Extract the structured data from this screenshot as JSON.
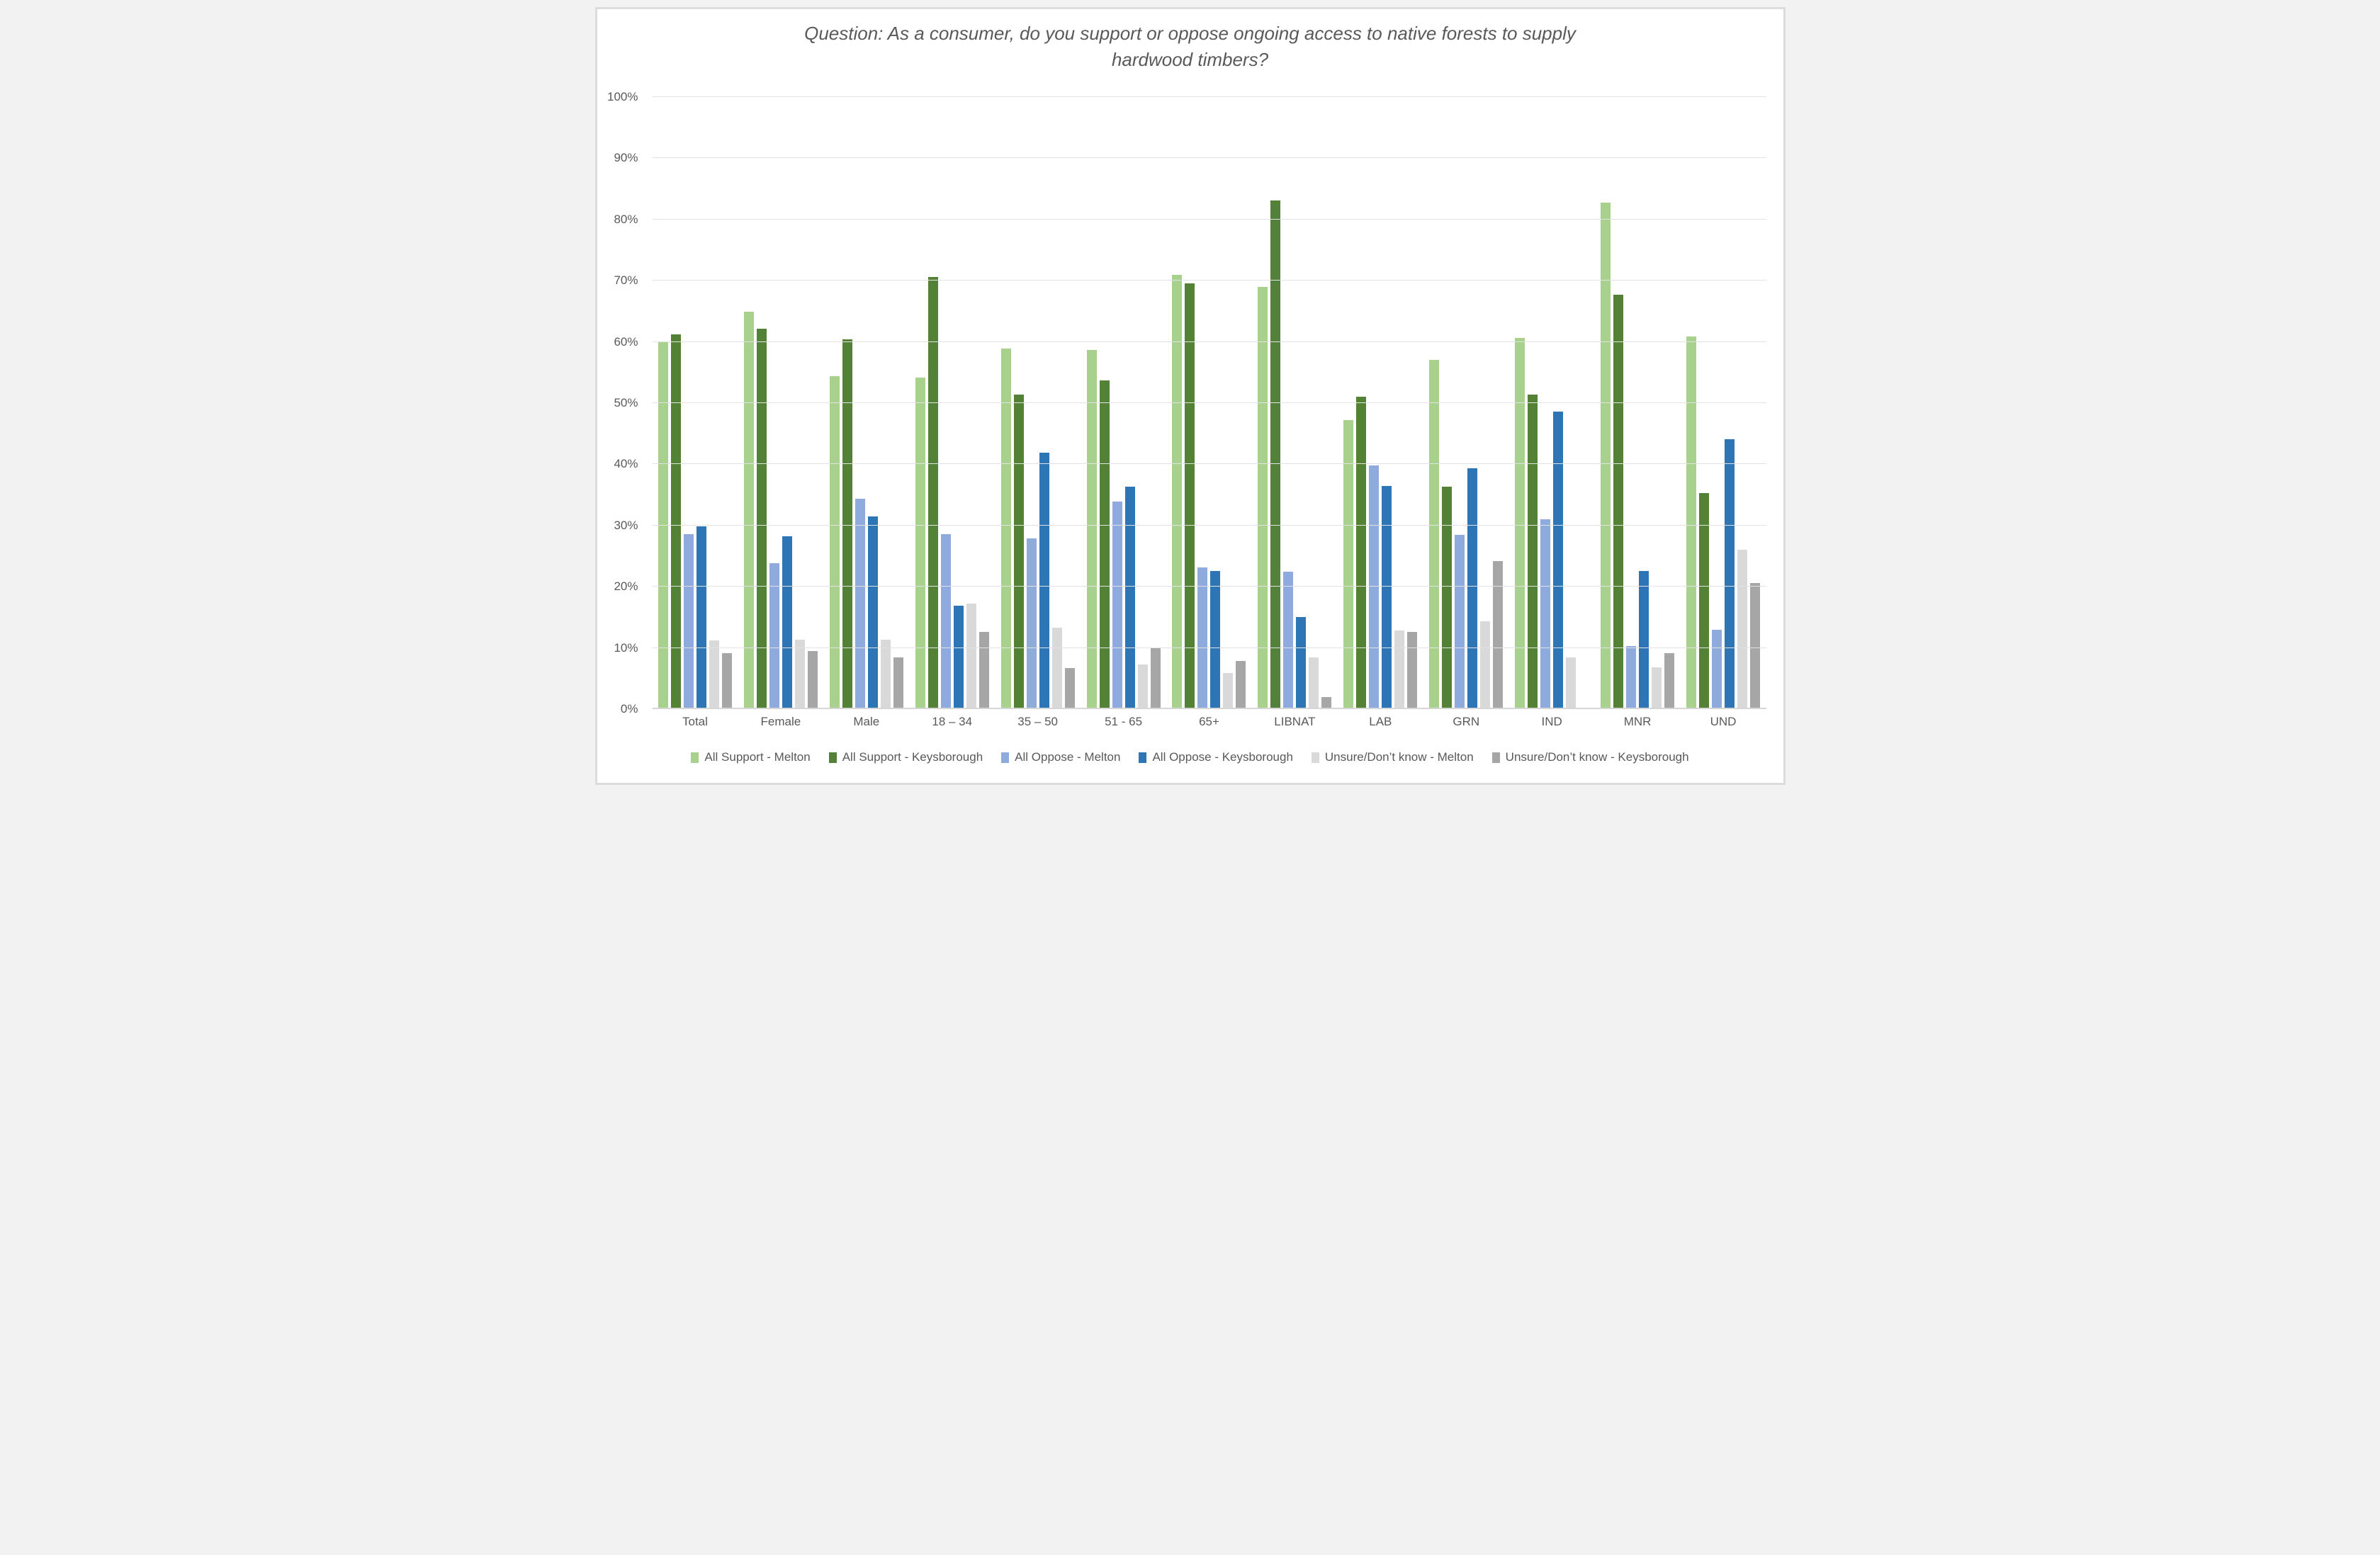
{
  "frame": {
    "background": "#ffffff",
    "border_color": "#dcdcdc",
    "text_color": "#595959",
    "gridline_color": "#e2e2e2"
  },
  "chart_data": {
    "type": "bar",
    "title": "Question: As a consumer, do you support or oppose ongoing access to native forests to supply hardwood timbers?",
    "title_lines": {
      "line1": "Question: As a consumer, do you support or oppose ongoing access to native forests to supply",
      "line2": "hardwood timbers?"
    },
    "xlabel": "",
    "ylabel": "",
    "ylim": [
      0,
      100
    ],
    "ytick_step": 10,
    "ytick_labels": [
      "0%",
      "10%",
      "20%",
      "30%",
      "40%",
      "50%",
      "60%",
      "70%",
      "80%",
      "90%",
      "100%"
    ],
    "grid": true,
    "legend_position": "bottom",
    "categories": [
      "Total",
      "Female",
      "Male",
      "18 – 34",
      "35 – 50",
      "51 - 65",
      "65+",
      "LIBNAT",
      "LAB",
      "GRN",
      "IND",
      "MNR",
      "UND"
    ],
    "series": [
      {
        "name": "All Support - Melton",
        "color": "#A9D18E",
        "values": [
          60.1,
          64.9,
          54.4,
          54.2,
          58.9,
          58.7,
          71.0,
          69.0,
          47.2,
          57.1,
          60.6,
          82.7,
          60.9
        ]
      },
      {
        "name": "All Support - Keysborough",
        "color": "#538135",
        "values": [
          61.2,
          62.2,
          60.4,
          70.6,
          51.4,
          53.7,
          69.6,
          83.1,
          51.0,
          36.3,
          51.4,
          67.7,
          35.3
        ]
      },
      {
        "name": "All Oppose - Melton",
        "color": "#8FAADC",
        "values": [
          28.6,
          23.9,
          34.4,
          28.6,
          27.9,
          33.9,
          23.1,
          22.5,
          39.8,
          28.5,
          31.0,
          10.3,
          13.0
        ]
      },
      {
        "name": "All Oppose - Keysborough",
        "color": "#2E75B6",
        "values": [
          29.9,
          28.3,
          31.5,
          16.9,
          41.9,
          36.4,
          22.6,
          15.1,
          36.5,
          39.4,
          48.6,
          22.6,
          44.1
        ]
      },
      {
        "name": "Unsure/Don’t know - Melton",
        "color": "#D9D9D9",
        "values": [
          11.2,
          11.3,
          11.3,
          17.2,
          13.3,
          7.3,
          5.9,
          8.5,
          12.8,
          14.4,
          8.5,
          6.8,
          26.1
        ]
      },
      {
        "name": "Unsure/Don’t know - Keysborough",
        "color": "#A6A6A6",
        "values": [
          9.1,
          9.5,
          8.4,
          12.6,
          6.7,
          9.9,
          7.9,
          2.0,
          12.6,
          24.2,
          0,
          9.1,
          20.6
        ]
      }
    ]
  }
}
